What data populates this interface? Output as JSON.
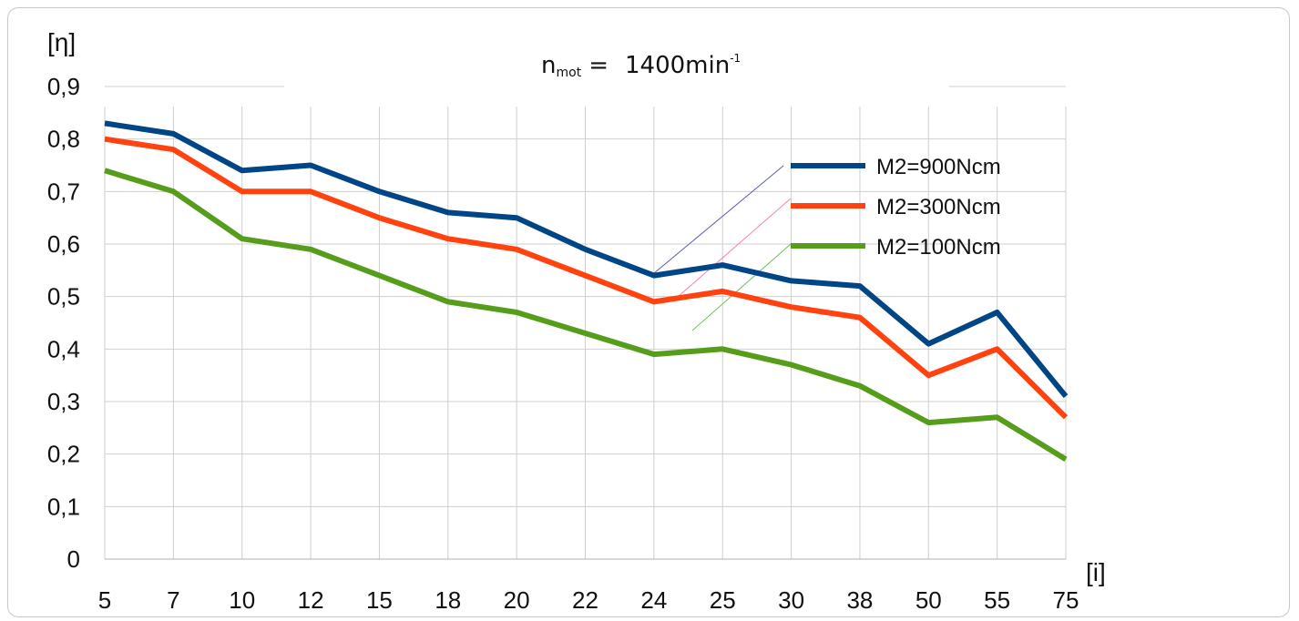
{
  "chart_data": {
    "type": "line",
    "title": {
      "n": "n",
      "sub": "mot",
      "eq": "=",
      "value": "1400min",
      "sup": "-1"
    },
    "ylabel": "[η]",
    "xlabel": "[i]",
    "categories": [
      "5",
      "7",
      "10",
      "12",
      "15",
      "18",
      "20",
      "22",
      "24",
      "25",
      "30",
      "38",
      "50",
      "55",
      "75"
    ],
    "ylim": [
      0,
      0.9
    ],
    "yticks": [
      "0",
      "0,1",
      "0,2",
      "0,3",
      "0,4",
      "0,5",
      "0,6",
      "0,7",
      "0,8",
      "0,9"
    ],
    "grid": true,
    "legend_position": "right",
    "series": [
      {
        "name": "M2=900Ncm",
        "color": "#004586",
        "values": [
          0.83,
          0.81,
          0.74,
          0.75,
          0.7,
          0.66,
          0.65,
          0.59,
          0.54,
          0.56,
          0.53,
          0.52,
          0.41,
          0.47,
          0.31
        ]
      },
      {
        "name": "M2=300Ncm",
        "color": "#ff420e",
        "values": [
          0.8,
          0.78,
          0.7,
          0.7,
          0.65,
          0.61,
          0.59,
          0.54,
          0.49,
          0.51,
          0.48,
          0.46,
          0.35,
          0.4,
          0.27
        ]
      },
      {
        "name": "M2=100Ncm",
        "color": "#579d1c",
        "values": [
          0.74,
          0.7,
          0.61,
          0.59,
          0.54,
          0.49,
          0.47,
          0.43,
          0.39,
          0.4,
          0.37,
          0.33,
          0.26,
          0.27,
          0.19
        ]
      }
    ]
  }
}
